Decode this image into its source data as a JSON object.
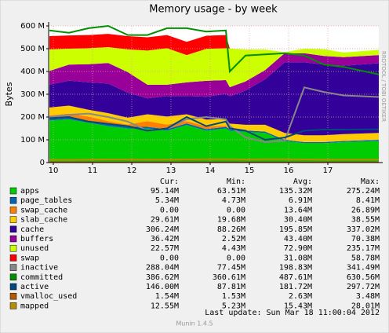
{
  "chart_data": {
    "type": "area",
    "title": "Memory usage - by week",
    "y_label": "Bytes",
    "side_text": "RRDTOOL / TOBI OETIKER",
    "x": [
      9.9,
      10.4,
      10.9,
      11.4,
      11.9,
      12.4,
      12.9,
      13.4,
      13.9,
      14.4,
      14.5,
      14.9,
      15.4,
      15.9,
      16.4,
      16.9,
      17.4,
      18.3
    ],
    "xlim": [
      9.88,
      18.3
    ],
    "xticks": [
      10,
      11,
      12,
      13,
      14,
      15,
      16,
      17
    ],
    "ylim": [
      0,
      600
    ],
    "yticks": [
      0,
      {
        "value": 100,
        "label": "100 M"
      },
      {
        "value": 200,
        "label": "200 M"
      },
      {
        "value": 300,
        "label": "300 M"
      },
      {
        "value": 400,
        "label": "400 M"
      },
      {
        "value": 500,
        "label": "500 M"
      },
      {
        "value": 600,
        "label": "600 M"
      }
    ],
    "grid": true,
    "stat_headers": [
      "Cur:",
      "Min:",
      "Avg:",
      "Max:"
    ],
    "series": [
      {
        "name": "apps",
        "color": "#00cc00",
        "style": "area",
        "values": [
          185,
          190,
          175,
          160,
          150,
          150,
          140,
          165,
          140,
          150,
          140,
          135,
          130,
          95,
          85,
          85,
          90,
          95
        ],
        "stats": [
          "95.14M",
          "63.51M",
          "135.32M",
          "275.24M"
        ]
      },
      {
        "name": "page_tables",
        "color": "#0066b3",
        "style": "area",
        "values": [
          7,
          7,
          7,
          7,
          7,
          7,
          7,
          7,
          7,
          7,
          6,
          6,
          6,
          5,
          5,
          5,
          5,
          5
        ],
        "stats": [
          "5.34M",
          "4.73M",
          "6.91M",
          "8.41M"
        ]
      },
      {
        "name": "swap_cache",
        "color": "#ff8000",
        "style": "area",
        "values": [
          15,
          18,
          20,
          15,
          10,
          25,
          20,
          10,
          12,
          5,
          0,
          0,
          0,
          0,
          0,
          0,
          0,
          0
        ],
        "stats": [
          "0.00",
          "0.00",
          "13.64M",
          "26.89M"
        ]
      },
      {
        "name": "slab_cache",
        "color": "#ffcc00",
        "style": "area",
        "values": [
          35,
          35,
          30,
          35,
          30,
          30,
          35,
          30,
          30,
          30,
          25,
          25,
          30,
          30,
          30,
          30,
          30,
          30
        ],
        "stats": [
          "29.61M",
          "19.68M",
          "30.40M",
          "38.55M"
        ]
      },
      {
        "name": "cache",
        "color": "#330099",
        "style": "area",
        "values": [
          100,
          110,
          120,
          130,
          110,
          70,
          90,
          80,
          100,
          110,
          120,
          150,
          200,
          310,
          320,
          310,
          300,
          306
        ],
        "stats": [
          "306.24M",
          "88.26M",
          "195.85M",
          "337.02M"
        ]
      },
      {
        "name": "buffers",
        "color": "#990099",
        "style": "area",
        "values": [
          60,
          70,
          80,
          90,
          90,
          60,
          50,
          60,
          70,
          60,
          40,
          40,
          40,
          40,
          40,
          38,
          38,
          36
        ],
        "stats": [
          "36.42M",
          "2.52M",
          "43.40M",
          "70.38M"
        ]
      },
      {
        "name": "unused",
        "color": "#ccff00",
        "style": "area",
        "values": [
          95,
          70,
          70,
          70,
          100,
          150,
          160,
          120,
          140,
          140,
          170,
          140,
          90,
          5,
          20,
          30,
          20,
          23
        ],
        "stats": [
          "22.57M",
          "4.43M",
          "72.90M",
          "235.17M"
        ]
      },
      {
        "name": "swap",
        "color": "#ff0000",
        "style": "area",
        "values": [
          58,
          58,
          58,
          58,
          58,
          58,
          58,
          58,
          58,
          58,
          0,
          0,
          0,
          0,
          0,
          0,
          0,
          0
        ],
        "stats": [
          "0.00",
          "0.00",
          "31.08M",
          "58.78M"
        ]
      },
      {
        "name": "inactive",
        "color": "#888888",
        "style": "line",
        "values": [
          200,
          210,
          215,
          200,
          180,
          140,
          150,
          190,
          200,
          190,
          160,
          110,
          90,
          95,
          330,
          310,
          295,
          288
        ],
        "stats": [
          "288.04M",
          "77.45M",
          "198.83M",
          "341.49M"
        ]
      },
      {
        "name": "committed",
        "color": "#008f00",
        "style": "line",
        "values": [
          580,
          570,
          590,
          600,
          560,
          560,
          590,
          590,
          575,
          580,
          400,
          470,
          475,
          480,
          470,
          430,
          420,
          387
        ],
        "stats": [
          "386.62M",
          "360.61M",
          "487.61M",
          "630.56M"
        ]
      },
      {
        "name": "active",
        "color": "#00487d",
        "style": "line",
        "values": [
          195,
          200,
          180,
          170,
          160,
          140,
          150,
          200,
          160,
          180,
          150,
          140,
          100,
          110,
          140,
          145,
          145,
          146
        ],
        "stats": [
          "146.00M",
          "87.81M",
          "181.72M",
          "297.72M"
        ]
      },
      {
        "name": "vmalloc_used",
        "color": "#b35a00",
        "style": "line",
        "values": [
          2,
          2,
          2,
          2,
          2,
          2,
          2,
          2,
          2,
          2,
          2,
          2,
          2,
          2,
          2,
          2,
          2,
          2
        ],
        "stats": [
          "1.54M",
          "1.53M",
          "2.63M",
          "3.48M"
        ]
      },
      {
        "name": "mapped",
        "color": "#b38f00",
        "style": "line",
        "values": [
          12,
          12,
          13,
          14,
          14,
          13,
          13,
          14,
          15,
          15,
          15,
          14,
          15,
          15,
          14,
          13,
          13,
          13
        ],
        "stats": [
          "12.55M",
          "5.23M",
          "15.43M",
          "28.01M"
        ]
      }
    ],
    "last_update": "Last update:  Sun Mar 18 11:00:04 2012",
    "footer": "Munin 1.4.5"
  }
}
